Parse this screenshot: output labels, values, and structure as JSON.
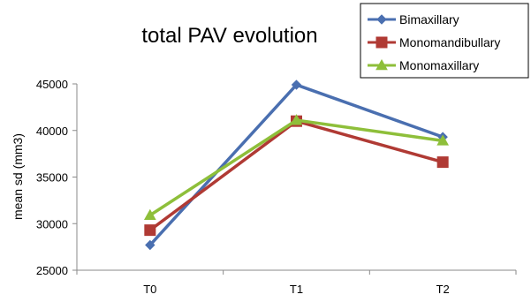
{
  "chart_data": {
    "type": "line",
    "title": "total PAV evolution",
    "xlabel": "",
    "ylabel": "mean sd (mm3)",
    "categories": [
      "T0",
      "T1",
      "T2"
    ],
    "ylim": [
      25000,
      45000
    ],
    "yticks": [
      25000,
      30000,
      35000,
      40000,
      45000
    ],
    "ytick_labels": [
      "25000",
      "30000",
      "35000",
      "40000",
      "45000"
    ],
    "grid": false,
    "legend_position": "top-right",
    "series": [
      {
        "name": "Bimaxillary",
        "values": [
          27700,
          44900,
          39300
        ],
        "color": "#4a6fb0",
        "marker": "diamond"
      },
      {
        "name": "Monomandibullary",
        "values": [
          29300,
          41000,
          36600
        ],
        "color": "#b03a34",
        "marker": "square"
      },
      {
        "name": "Monomaxillary",
        "values": [
          30900,
          41100,
          38900
        ],
        "color": "#8ebf3a",
        "marker": "triangle"
      }
    ]
  }
}
